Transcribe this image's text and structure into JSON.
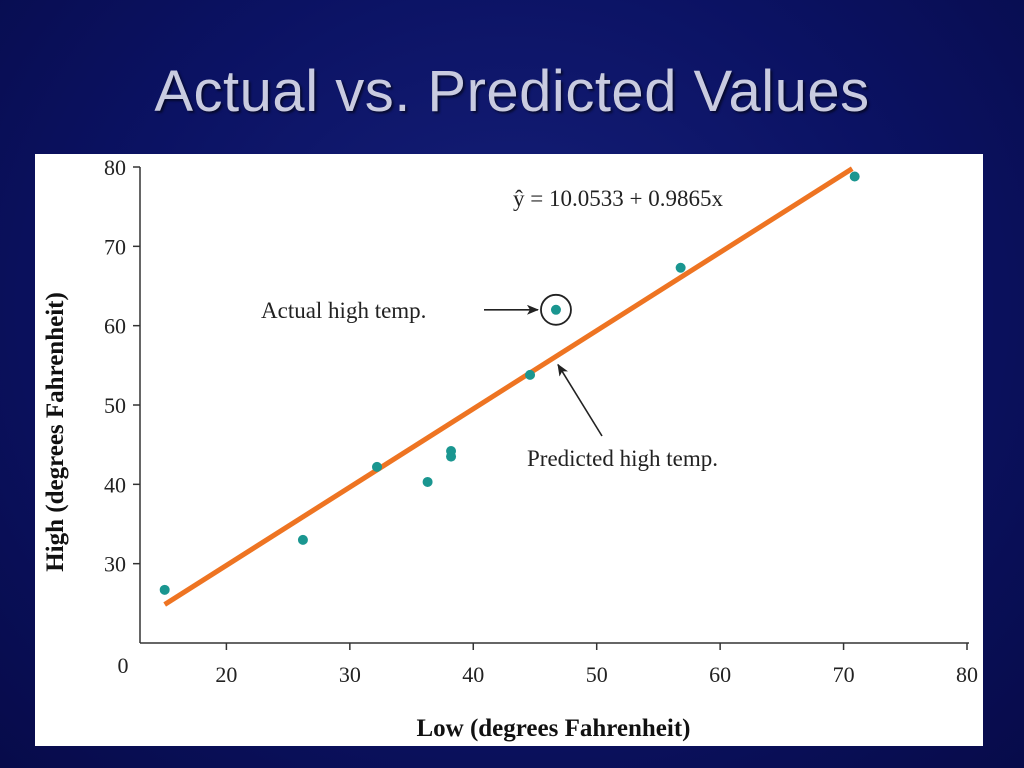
{
  "slide": {
    "title": "Actual vs. Predicted Values"
  },
  "colors": {
    "background": "#0b1263",
    "title_text": "#c9cbe0",
    "points": "#1a9690",
    "regression_line": "#ee7422"
  },
  "chart_data": {
    "type": "scatter",
    "xlabel": "Low (degrees Fahrenheit)",
    "ylabel": "High (degrees Fahrenheit)",
    "xlim": [
      13,
      80
    ],
    "ylim": [
      20,
      80
    ],
    "x_ticks": [
      20,
      30,
      40,
      50,
      60,
      70,
      80
    ],
    "y_ticks": [
      30,
      40,
      50,
      60,
      70,
      80
    ],
    "origin_label": "0",
    "grid": false,
    "points": [
      {
        "x": 15,
        "y": 26.7
      },
      {
        "x": 26.2,
        "y": 33
      },
      {
        "x": 32.2,
        "y": 42.2
      },
      {
        "x": 36.3,
        "y": 40.3
      },
      {
        "x": 38.2,
        "y": 43.5
      },
      {
        "x": 38.2,
        "y": 44.2
      },
      {
        "x": 44.6,
        "y": 53.8
      },
      {
        "x": 46.7,
        "y": 62
      },
      {
        "x": 56.8,
        "y": 67.3
      },
      {
        "x": 70.9,
        "y": 78.8
      }
    ],
    "regression": {
      "intercept": 10.0533,
      "slope": 0.9865,
      "x_range": [
        15,
        70.7
      ],
      "equation_label": "ŷ = 10.0533 + 0.9865x"
    },
    "annotations": {
      "actual_label": "Actual high temp.",
      "actual_point": {
        "x": 46.7,
        "y": 62
      },
      "predicted_label": "Predicted high temp.",
      "predicted_point": {
        "x": 46.7,
        "y": 56.1
      }
    }
  }
}
